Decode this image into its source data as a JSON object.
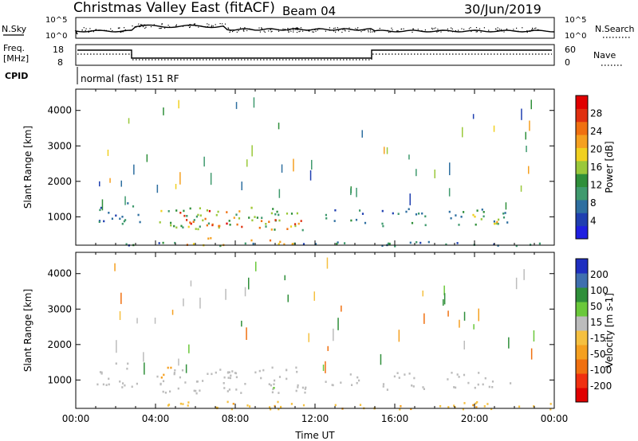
{
  "header": {
    "title": "Christmas Valley East (fitACF)",
    "beam": "Beam 04",
    "date": "30/Jun/2019"
  },
  "colors": {
    "power_scale": [
      "#1f1fe0",
      "#1f3fb0",
      "#2e6fa0",
      "#3f9a6e",
      "#2f8f3a",
      "#9ac83a",
      "#f0d020",
      "#f5a020",
      "#f07010",
      "#e03010",
      "#e00000"
    ],
    "velocity_scale": [
      "#e00000",
      "#f03010",
      "#f07010",
      "#f5a020",
      "#f5c040",
      "#bcbcbc",
      "#6ac83a",
      "#2f8f3a",
      "#3f6faf",
      "#1f2fc0"
    ],
    "ground_scatter": "#bcbcbc"
  },
  "top_panels": {
    "nsky_label": "N.Sky",
    "nsky_ticks": [
      "10^5",
      "10^0"
    ],
    "nsearch_label": "N.Search",
    "nsearch_ticks": [
      "10^5",
      "10^0"
    ],
    "freq_label": "Freq.",
    "freq_unit": "[MHz]",
    "freq_ticks": [
      "18",
      "8"
    ],
    "nave_label": "Nave",
    "nave_ticks": [
      "60",
      "0"
    ],
    "cpid_label": "CPID",
    "cpid_text": "normal (fast) 151 RF"
  },
  "chart_data": [
    {
      "type": "heatmap",
      "title": "",
      "variable": "Power",
      "ylabel": "Slant Range [km]",
      "xlabel": "",
      "colorbar_label": "Power [dB]",
      "colorbar_ticks": [
        "28",
        "24",
        "20",
        "16",
        "12",
        "8",
        "4"
      ],
      "colorbar_range": [
        0,
        32
      ],
      "yticks": [
        "1000",
        "2000",
        "3000",
        "4000"
      ],
      "ylim": [
        200,
        4600
      ],
      "xlim": [
        0,
        24
      ],
      "regions": [
        {
          "t": [
            1.0,
            3.2
          ],
          "r": [
            800,
            1500
          ],
          "v": 8
        },
        {
          "t": [
            4.0,
            11.5
          ],
          "r": [
            650,
            1300
          ],
          "v": 14
        },
        {
          "t": [
            5.0,
            8.5
          ],
          "r": [
            700,
            1200
          ],
          "v": 26
        },
        {
          "t": [
            8.5,
            11.5
          ],
          "r": [
            650,
            950
          ],
          "v": 24
        },
        {
          "t": [
            12.5,
            14.5
          ],
          "r": [
            850,
            1250
          ],
          "v": 8
        },
        {
          "t": [
            15.3,
            17.6
          ],
          "r": [
            750,
            1250
          ],
          "v": 8
        },
        {
          "t": [
            18.5,
            21.8
          ],
          "r": [
            800,
            1250
          ],
          "v": 10
        },
        {
          "t": [
            19.5,
            21.5
          ],
          "r": [
            800,
            1100
          ],
          "v": 18
        },
        {
          "t": [
            5.5,
            11.0
          ],
          "r": [
            200,
            430
          ],
          "v": 22
        },
        {
          "t": [
            0.0,
            24.0
          ],
          "r": [
            200,
            320
          ],
          "v": 9
        }
      ]
    },
    {
      "type": "heatmap",
      "title": "",
      "variable": "Velocity",
      "ylabel": "Slant Range [km]",
      "xlabel": "Time UT",
      "colorbar_label": "Velocity [m s-1]",
      "colorbar_ticks": [
        "200",
        "100",
        "50",
        "15",
        "-15",
        "-50",
        "-100",
        "-200"
      ],
      "colorbar_range": [
        -250,
        250
      ],
      "yticks": [
        "1000",
        "2000",
        "3000",
        "4000"
      ],
      "ylim": [
        200,
        4600
      ],
      "xlim": [
        0,
        24
      ],
      "xticks": [
        "00:00",
        "04:00",
        "08:00",
        "12:00",
        "16:00",
        "20:00",
        "00:00"
      ],
      "regions": [
        {
          "t": [
            1.0,
            3.2
          ],
          "r": [
            800,
            1500
          ],
          "v": 0
        },
        {
          "t": [
            4.0,
            11.5
          ],
          "r": [
            650,
            1400
          ],
          "v": 0
        },
        {
          "t": [
            4.2,
            5.2
          ],
          "r": [
            1000,
            1400
          ],
          "v": -60
        },
        {
          "t": [
            9.5,
            11.5
          ],
          "r": [
            650,
            900
          ],
          "v": 40
        },
        {
          "t": [
            12.5,
            14.5
          ],
          "r": [
            850,
            1250
          ],
          "v": 0
        },
        {
          "t": [
            15.3,
            17.6
          ],
          "r": [
            750,
            1250
          ],
          "v": 0
        },
        {
          "t": [
            18.5,
            21.8
          ],
          "r": [
            800,
            1250
          ],
          "v": 0
        },
        {
          "t": [
            4.5,
            24.0
          ],
          "r": [
            200,
            420
          ],
          "v": -40
        }
      ]
    }
  ]
}
